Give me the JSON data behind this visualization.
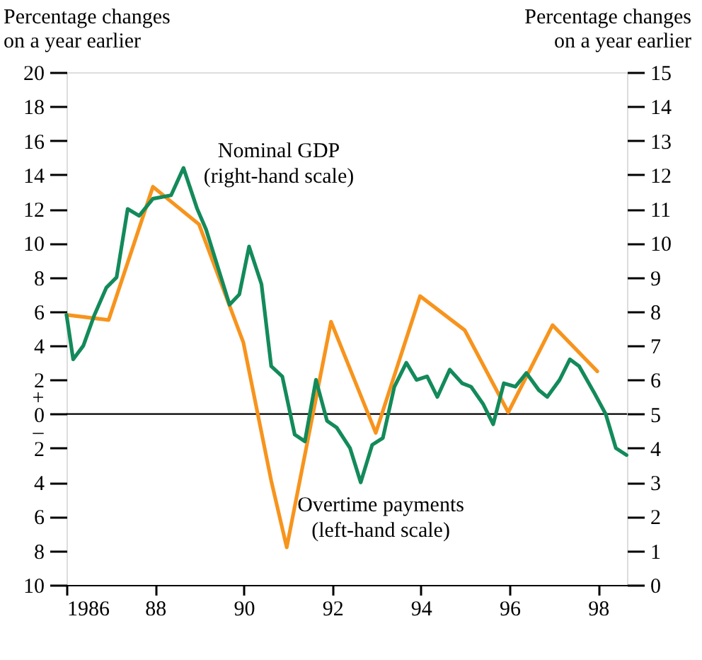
{
  "chart_data": {
    "type": "line",
    "ylabel": "Percentage changes\non a year earlier",
    "y2label": "Percentage changes\non a year earlier",
    "xlim": [
      1986,
      1998.65
    ],
    "xticks": [
      1986,
      {
        "value": 1988,
        "label": "88"
      },
      {
        "value": 1990,
        "label": "90"
      },
      {
        "value": 1992,
        "label": "92"
      },
      {
        "value": 1994,
        "label": "94"
      },
      {
        "value": 1996,
        "label": "96"
      },
      {
        "value": 1998,
        "label": "98"
      }
    ],
    "ylim": [
      -10,
      20
    ],
    "yticks": [
      {
        "value": -10,
        "label": "10"
      },
      {
        "value": -8,
        "label": "8"
      },
      {
        "value": -6,
        "label": "6"
      },
      {
        "value": -4,
        "label": "4"
      },
      {
        "value": -2,
        "label": "2"
      },
      0,
      2,
      4,
      6,
      8,
      10,
      12,
      14,
      16,
      18,
      20
    ],
    "y2lim": [
      0,
      15
    ],
    "y2ticks": [
      0,
      1,
      2,
      3,
      4,
      5,
      6,
      7,
      8,
      9,
      10,
      11,
      12,
      13,
      14,
      15
    ],
    "series": [
      {
        "name": "Nominal GDP\n(right-hand scale)",
        "color": "#138a5a",
        "axis": "y2",
        "x": [
          1986.0,
          1986.15,
          1986.38,
          1986.63,
          1986.9,
          1987.13,
          1987.38,
          1987.64,
          1987.95,
          1988.36,
          1988.64,
          1988.95,
          1989.15,
          1989.68,
          1989.9,
          1990.12,
          1990.4,
          1990.62,
          1990.87,
          1991.15,
          1991.38,
          1991.63,
          1991.88,
          1992.1,
          1992.4,
          1992.64,
          1992.9,
          1993.14,
          1993.4,
          1993.67,
          1993.9,
          1994.14,
          1994.37,
          1994.65,
          1994.93,
          1995.13,
          1995.4,
          1995.63,
          1995.87,
          1996.13,
          1996.38,
          1996.66,
          1996.85,
          1997.13,
          1997.36,
          1997.57,
          1997.92,
          1998.17,
          1998.4,
          1998.64
        ],
        "values": [
          7.9,
          6.6,
          7.0,
          7.9,
          8.7,
          9.0,
          11.0,
          10.8,
          11.3,
          11.4,
          12.2,
          11.0,
          10.4,
          8.2,
          8.5,
          9.9,
          8.8,
          6.4,
          6.1,
          4.4,
          4.2,
          6.0,
          4.8,
          4.6,
          4.0,
          3.0,
          4.1,
          4.3,
          5.8,
          6.5,
          6.0,
          6.1,
          5.5,
          6.3,
          5.9,
          5.8,
          5.3,
          4.7,
          5.9,
          5.8,
          6.2,
          5.7,
          5.5,
          6.0,
          6.6,
          6.4,
          5.6,
          5.0,
          4.0,
          3.8
        ]
      },
      {
        "name": "Overtime payments\n(left-hand scale)",
        "color": "#f7941d",
        "x": [
          1986.0,
          1986.95,
          1987.95,
          1988.99,
          1989.99,
          1990.62,
          1990.97,
          1991.97,
          1992.98,
          1993.98,
          1994.99,
          1995.97,
          1996.97,
          1997.98
        ],
        "values": [
          5.8,
          5.5,
          13.3,
          11.1,
          4.2,
          -3.9,
          -7.8,
          5.4,
          -1.1,
          6.9,
          4.9,
          0.1,
          5.2,
          2.5
        ]
      }
    ],
    "ref_lines": [
      {
        "axis": "y",
        "value": 0,
        "color": "#000000"
      }
    ],
    "annotations": [
      "+",
      "–"
    ],
    "grid": false,
    "legend": false
  }
}
